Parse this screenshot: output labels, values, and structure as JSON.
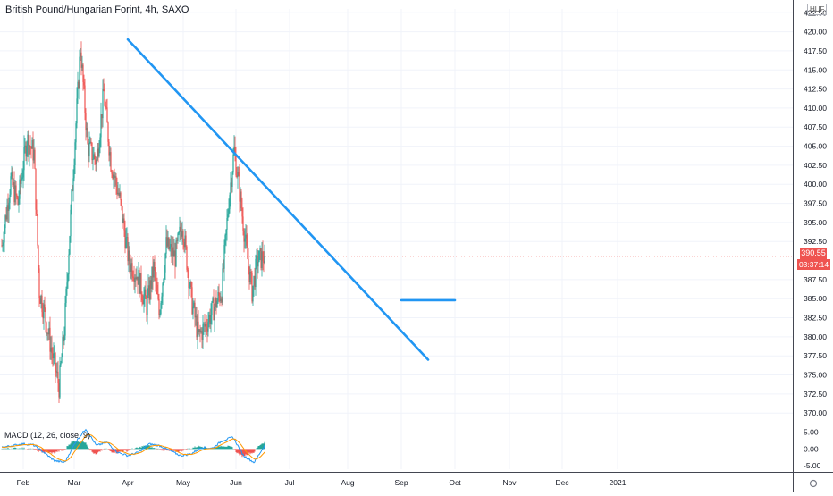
{
  "header": {
    "symbol_title": "British Pound/Hungarian Forint, 4h, SAXO",
    "currency_badge": "HUF"
  },
  "price_axis": {
    "ticks": [
      {
        "value": 422.5,
        "label": "422.50"
      },
      {
        "value": 420,
        "label": "420.00"
      },
      {
        "value": 417.5,
        "label": "417.50"
      },
      {
        "value": 415,
        "label": "415.00"
      },
      {
        "value": 412.5,
        "label": "412.50"
      },
      {
        "value": 410,
        "label": "410.00"
      },
      {
        "value": 407.5,
        "label": "407.50"
      },
      {
        "value": 405,
        "label": "405.00"
      },
      {
        "value": 402.5,
        "label": "402.50"
      },
      {
        "value": 400,
        "label": "400.00"
      },
      {
        "value": 397.5,
        "label": "397.50"
      },
      {
        "value": 395,
        "label": "395.00"
      },
      {
        "value": 392.5,
        "label": "392.50"
      },
      {
        "value": 387.5,
        "label": "387.50"
      },
      {
        "value": 385,
        "label": "385.00"
      },
      {
        "value": 382.5,
        "label": "382.50"
      },
      {
        "value": 380,
        "label": "380.00"
      },
      {
        "value": 377.5,
        "label": "377.50"
      },
      {
        "value": 375,
        "label": "375.00"
      },
      {
        "value": 372.5,
        "label": "372.50"
      },
      {
        "value": 370,
        "label": "370.00"
      }
    ],
    "range": [
      368.5,
      423
    ],
    "last_price_label": "390.55",
    "last_price_value": 390.55,
    "countdown_label": "03:37:14",
    "last_price_color": "#ef5350"
  },
  "time_axis": {
    "months": [
      "Feb",
      "Mar",
      "Apr",
      "May",
      "Jun",
      "Jul",
      "Aug",
      "Sep",
      "Oct",
      "Nov",
      "Dec",
      "2021"
    ]
  },
  "indicator": {
    "title": "MACD (12, 26, close, 9)",
    "ticks": [
      {
        "value": 5,
        "label": "5.00"
      },
      {
        "value": 0,
        "label": "0.00"
      },
      {
        "value": -5,
        "label": "-5.00"
      }
    ],
    "range": [
      -6,
      7
    ]
  },
  "colors": {
    "up": "#26a69a",
    "down": "#ef5350",
    "trendline": "#2196f3",
    "macd_line": "#2196f3",
    "signal_line": "#ff9800",
    "grid": "#f0f3fa",
    "axis_text": "#131722"
  },
  "chart_data": {
    "type": "candlestick",
    "title": "British Pound/Hungarian Forint, 4h, SAXO",
    "price_series_anchors": {
      "x_unit": "trading days since chart start (1 unit per ~day)",
      "x": [
        0,
        5,
        9,
        14,
        18,
        21,
        24,
        28,
        32,
        35,
        39,
        44,
        48,
        53,
        57,
        61,
        66,
        71,
        76,
        81,
        85,
        88,
        92,
        97,
        101,
        106,
        110,
        114,
        118,
        123,
        127,
        130,
        133,
        137,
        140,
        143,
        147
      ],
      "close": [
        392.0,
        400.5,
        397.5,
        406.0,
        404.0,
        386.0,
        383.0,
        378.0,
        373.5,
        381.0,
        398.0,
        418.0,
        405.0,
        403.0,
        412.0,
        403.0,
        398.0,
        390.0,
        388.0,
        384.0,
        389.0,
        383.0,
        392.0,
        390.5,
        395.0,
        385.0,
        380.0,
        381.5,
        383.5,
        386.0,
        398.0,
        404.5,
        399.0,
        391.0,
        386.0,
        390.0,
        390.55
      ]
    },
    "last_price": 390.55,
    "trend_lines": [
      {
        "name": "falling trendline",
        "from": {
          "date": "2020-04-01",
          "price": 419.0
        },
        "to": {
          "date": "2020-09-16",
          "price": 377.0
        }
      },
      {
        "name": "support line",
        "from": {
          "date": "2020-09-01",
          "price": 384.8
        },
        "to": {
          "date": "2020-10-01",
          "price": 384.8
        }
      }
    ],
    "ylim": [
      368.5,
      423
    ],
    "x_tick_labels": [
      "Feb",
      "Mar",
      "Apr",
      "May",
      "Jun",
      "Jul",
      "Aug",
      "Sep",
      "Oct",
      "Nov",
      "Dec",
      "2021"
    ],
    "indicator": {
      "name": "MACD (12, 26, close, 9)",
      "ylim": [
        -6,
        7
      ],
      "macd_anchors": [
        0.5,
        1.0,
        1.5,
        1.2,
        -1.0,
        -3.5,
        -4.0,
        2.0,
        6.0,
        1.0,
        2.0,
        -1.0,
        -2.0,
        -1.0,
        1.5,
        1.0,
        -0.5,
        -2.0,
        -1.5,
        0.5,
        0.2,
        2.5,
        3.5,
        -2.0,
        -4.0,
        1.0
      ]
    }
  }
}
